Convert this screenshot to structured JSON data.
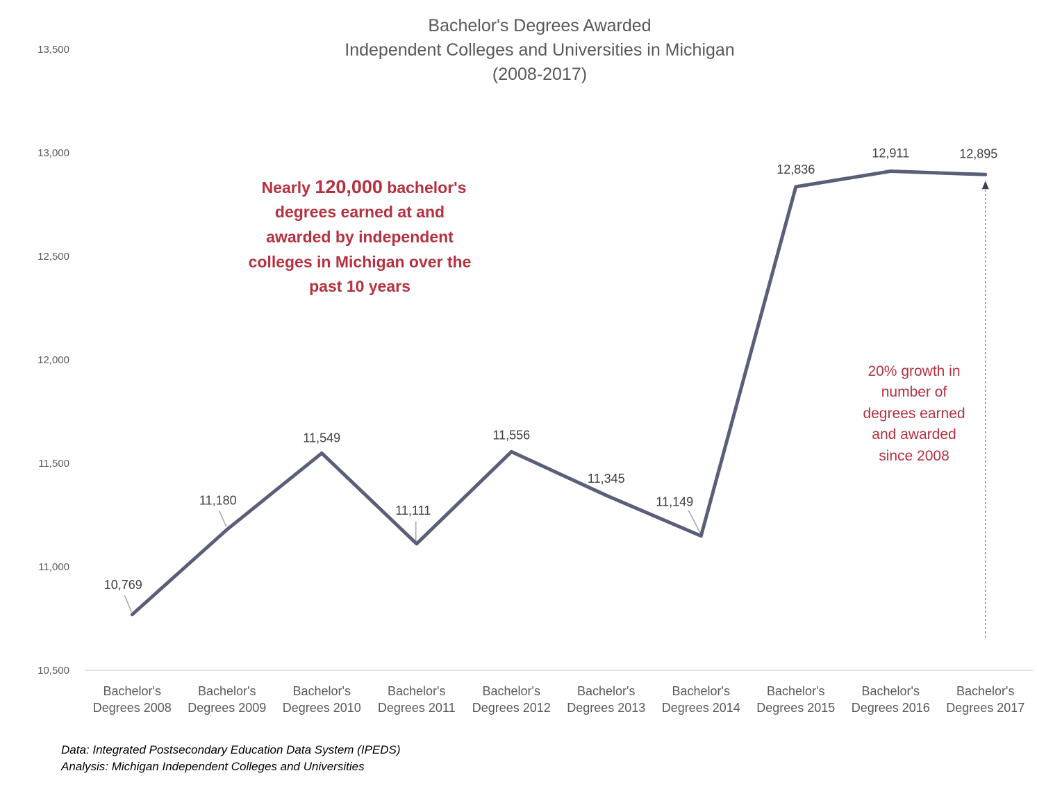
{
  "chart_data": {
    "type": "line",
    "title_lines": [
      "Bachelor's Degrees Awarded",
      "Independent Colleges and Universities in Michigan",
      "(2008-2017)"
    ],
    "categories": [
      [
        "Bachelor's",
        "Degrees 2008"
      ],
      [
        "Bachelor's",
        "Degrees 2009"
      ],
      [
        "Bachelor's",
        "Degrees 2010"
      ],
      [
        "Bachelor's",
        "Degrees 2011"
      ],
      [
        "Bachelor's",
        "Degrees 2012"
      ],
      [
        "Bachelor's",
        "Degrees 2013"
      ],
      [
        "Bachelor's",
        "Degrees 2014"
      ],
      [
        "Bachelor's",
        "Degrees 2015"
      ],
      [
        "Bachelor's",
        "Degrees 2016"
      ],
      [
        "Bachelor's",
        "Degrees 2017"
      ]
    ],
    "values": [
      10769,
      11180,
      11549,
      11111,
      11556,
      11345,
      11149,
      12836,
      12911,
      12895
    ],
    "value_labels": [
      "10,769",
      "11,180",
      "11,549",
      "11,111",
      "11,556",
      "11,345",
      "11,149",
      "12,836",
      "12,911",
      "12,895"
    ],
    "ylim": [
      10500,
      13500
    ],
    "yticks": [
      10500,
      11000,
      11500,
      12000,
      12500,
      13000,
      13500
    ],
    "ytick_labels": [
      "10,500",
      "11,000",
      "11,500",
      "12,000",
      "12,500",
      "13,000",
      "13,500"
    ],
    "grid": false,
    "line_color": "#5a5f78",
    "callout": {
      "prefix": "Nearly ",
      "highlight": "120,000",
      "line1_rest": " bachelor's",
      "lines": [
        "degrees earned at and",
        "awarded by independent",
        "colleges in Michigan over the",
        "past 10 years"
      ]
    },
    "growth_note": {
      "lines": [
        "20% growth in",
        "number of",
        "degrees earned",
        "and awarded",
        "since 2008"
      ]
    },
    "source_lines": [
      "Data: Integrated Postsecondary Education Data System (IPEDS)",
      "Analysis: Michigan Independent Colleges and Universities"
    ],
    "accent_color": "#b5313f"
  }
}
